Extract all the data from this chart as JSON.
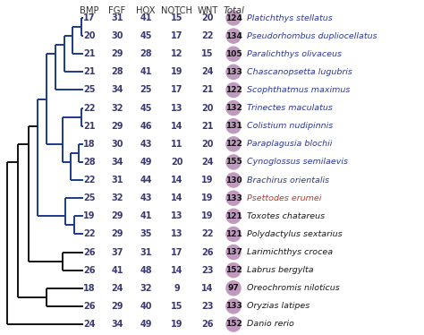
{
  "species": [
    "Platichthys stellatus",
    "Pseudorhombus dupliocellatus",
    "Paralichthys olivaceus",
    "Chascanopsetta lugubris",
    "Scophthatmus maximus",
    "Trinectes maculatus",
    "Colistium nudipinnis",
    "Paraplagusia blochii",
    "Cynoglossus semilaevis",
    "Brachirus orientalis",
    "Psettodes erumei",
    "Toxotes chatareus",
    "Polydactylus sextarius",
    "Larimichthys crocea",
    "Labrus bergylta",
    "Oreochromis niloticus",
    "Oryzias latipes",
    "Danio rerio"
  ],
  "BMP": [
    17,
    20,
    21,
    21,
    25,
    22,
    21,
    18,
    28,
    22,
    25,
    19,
    22,
    26,
    26,
    18,
    26,
    24
  ],
  "FGF": [
    31,
    30,
    29,
    28,
    34,
    32,
    29,
    30,
    34,
    31,
    32,
    29,
    29,
    37,
    41,
    24,
    29,
    34
  ],
  "HOX": [
    41,
    45,
    28,
    41,
    25,
    45,
    46,
    43,
    49,
    44,
    43,
    41,
    35,
    31,
    48,
    32,
    40,
    49
  ],
  "NOTCH": [
    15,
    17,
    12,
    19,
    17,
    13,
    14,
    11,
    20,
    14,
    14,
    13,
    13,
    17,
    14,
    9,
    15,
    19
  ],
  "WNT": [
    20,
    22,
    15,
    24,
    21,
    20,
    21,
    20,
    24,
    19,
    19,
    19,
    22,
    26,
    23,
    14,
    23,
    26
  ],
  "Total": [
    124,
    134,
    105,
    133,
    122,
    132,
    131,
    122,
    155,
    130,
    133,
    121,
    121,
    137,
    152,
    97,
    133,
    152
  ],
  "species_color_blue": "#2d3899",
  "species_color_red": "#cc3322",
  "species_color_black": "#1a1a1a",
  "species_is_blue": [
    true,
    true,
    true,
    true,
    true,
    true,
    true,
    true,
    true,
    true,
    false,
    false,
    false,
    false,
    false,
    false,
    false,
    false
  ],
  "species_is_red": [
    false,
    false,
    false,
    false,
    false,
    false,
    false,
    false,
    false,
    false,
    true,
    false,
    false,
    false,
    false,
    false,
    false,
    false
  ],
  "circle_color": "#c099be",
  "header_color": "#333333",
  "tree_color_blue": "#1a3a8a",
  "tree_color_black": "#111111",
  "figsize": [
    4.74,
    3.74
  ],
  "dpi": 100
}
